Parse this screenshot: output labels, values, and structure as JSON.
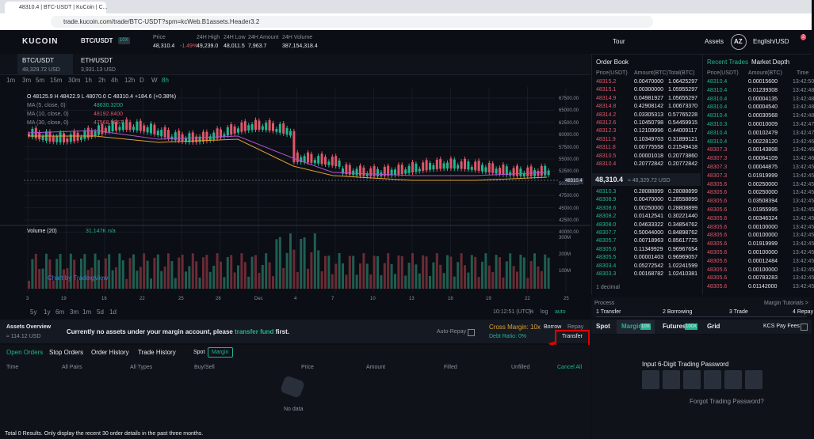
{
  "browser": {
    "tab_title": "48310.4 | BTC-USDT | KuCoin | C...",
    "url": "trade.kucoin.com/trade/BTC-USDT?spm=kcWeb.B1assets.Header3.2"
  },
  "header": {
    "logo": "KUCOIN",
    "pair": "BTC/USDT",
    "leverage": "10X",
    "stats": [
      {
        "label": "Price",
        "value": "48,310.4",
        "change": "-1.49%"
      },
      {
        "label": "24H High",
        "value": "49,239.0"
      },
      {
        "label": "24H Low",
        "value": "48,011.5"
      },
      {
        "label": "24H Amount",
        "value": "7,963.7"
      },
      {
        "label": "24H Volume",
        "value": "387,154,318.4"
      }
    ],
    "tour": "Tour",
    "assets": "Assets",
    "avatar": "AZ",
    "language": "English/USD",
    "badge": "2"
  },
  "tickers": [
    {
      "pair": "BTC/USDT",
      "price": "48,329.72 USD"
    },
    {
      "pair": "ETH/USDT",
      "price": "3,931.13 USD"
    }
  ],
  "intervals": [
    "1m",
    "3m",
    "5m",
    "15m",
    "30m",
    "1h",
    "2h",
    "4h",
    "12h",
    "D",
    "W",
    "8h"
  ],
  "chart": {
    "ohlc": "O 48125.9  H 48422.9  L 48070.0  C 48310.4  +184.6 (+0.38%)",
    "ma": [
      {
        "label": "MA (5, close, 0)",
        "value": "48630.3200"
      },
      {
        "label": "MA (10, close, 0)",
        "value": "48192.8400"
      },
      {
        "label": "MA (30, close, 0)",
        "value": "47568.5867"
      }
    ],
    "price_axis": [
      "67500.00",
      "65000.00",
      "62500.00",
      "60000.00",
      "57500.00",
      "55000.00",
      "52500.00",
      "50000.00",
      "47500.00",
      "45000.00",
      "42500.00",
      "40000.00"
    ],
    "current_price": "48310.4",
    "volume_label": "Volume (20)",
    "volume_value": "31.147K  n/a",
    "volume_axis": [
      "300M",
      "200M",
      "100M"
    ],
    "date_axis": [
      "3",
      "19",
      "16",
      "22",
      "25",
      "28",
      "Dec",
      "4",
      "7",
      "10",
      "13",
      "16",
      "19",
      "22",
      "25"
    ],
    "watermark": "Chart by TradingView",
    "ranges": [
      "5y",
      "1y",
      "6m",
      "3m",
      "1m",
      "5d",
      "1d"
    ],
    "time": "10:12:51 (UTC)",
    "percent": "%",
    "log": "log",
    "auto": "auto"
  },
  "order_book": {
    "title": "Order Book",
    "columns": [
      "Price(USDT)",
      "Amount(BTC)",
      "Total(BTC)"
    ],
    "asks": [
      [
        "48315.2",
        "0.00470000",
        "1.06425297"
      ],
      [
        "48315.1",
        "0.00300000",
        "1.05955297"
      ],
      [
        "48314.9",
        "0.04981927",
        "1.05655297"
      ],
      [
        "48314.8",
        "0.42908142",
        "1.00673370"
      ],
      [
        "48314.2",
        "0.03305313",
        "0.57765228"
      ],
      [
        "48312.6",
        "0.10450798",
        "0.54459915"
      ],
      [
        "48312.3",
        "0.12109996",
        "0.44009117"
      ],
      [
        "48311.9",
        "0.10349703",
        "0.31899121"
      ],
      [
        "48311.8",
        "0.00775558",
        "0.21549418"
      ],
      [
        "48310.5",
        "0.00001018",
        "0.20773860"
      ],
      [
        "48310.4",
        "0.20772842",
        "0.20772842"
      ]
    ],
    "mid_price": "48,310.4",
    "mid_usd": "≈ 48,329.72 USD",
    "bids": [
      [
        "48310.3",
        "0.28088899",
        "0.28088899"
      ],
      [
        "48308.9",
        "0.00470000",
        "0.28558899"
      ],
      [
        "48308.6",
        "0.00250000",
        "0.28808899"
      ],
      [
        "48308.2",
        "0.01412541",
        "0.30221440"
      ],
      [
        "48308.0",
        "0.04633322",
        "0.34854762"
      ],
      [
        "48307.7",
        "0.50044000",
        "0.84898762"
      ],
      [
        "48305.7",
        "0.00718963",
        "0.85617725"
      ],
      [
        "48305.6",
        "0.11349929",
        "0.96967654"
      ],
      [
        "48305.5",
        "0.00001403",
        "0.96969057"
      ],
      [
        "48303.4",
        "0.05272542",
        "1.02241599"
      ],
      [
        "48303.3",
        "0.00168782",
        "1.02410381"
      ]
    ],
    "decimal": "1 decimal"
  },
  "trades": {
    "tabs": [
      "Recent Trades",
      "Market Depth"
    ],
    "columns": [
      "Price(USDT)",
      "Amount(BTC)",
      "Time"
    ],
    "rows": [
      [
        "48310.4",
        "0.00015600",
        "13:42:50"
      ],
      [
        "48310.4",
        "0.01239308",
        "13:42:48"
      ],
      [
        "48310.4",
        "0.00004135",
        "13:42:48"
      ],
      [
        "48310.4",
        "0.00004540",
        "13:42:48"
      ],
      [
        "48310.4",
        "0.00030568",
        "13:42:48"
      ],
      [
        "48310.3",
        "0.00010009",
        "13:42:47"
      ],
      [
        "48310.4",
        "0.00102479",
        "13:42:47"
      ],
      [
        "48310.4",
        "0.00228120",
        "13:42:46"
      ],
      [
        "48307.3",
        "0.00143808",
        "13:42:46"
      ],
      [
        "48307.3",
        "0.00064109",
        "13:42:46"
      ],
      [
        "48307.3",
        "0.00044875",
        "13:42:45"
      ],
      [
        "48307.3",
        "0.01919999",
        "13:42:45"
      ],
      [
        "48305.6",
        "0.00250000",
        "13:42:45"
      ],
      [
        "48305.6",
        "0.00250000",
        "13:42:45"
      ],
      [
        "48305.6",
        "0.03508394",
        "13:42:45"
      ],
      [
        "48305.6",
        "0.01955995",
        "13:42:45"
      ],
      [
        "48305.6",
        "0.00346324",
        "13:42:45"
      ],
      [
        "48305.6",
        "0.00100000",
        "13:42:45"
      ],
      [
        "48305.6",
        "0.00100000",
        "13:42:45"
      ],
      [
        "48305.6",
        "0.01919999",
        "13:42:45"
      ],
      [
        "48305.6",
        "0.00100000",
        "13:42:45"
      ],
      [
        "48305.6",
        "0.00012484",
        "13:42:45"
      ],
      [
        "48305.6",
        "0.00100000",
        "13:42:45"
      ],
      [
        "48305.6",
        "0.00783283",
        "13:42:45"
      ],
      [
        "48305.6",
        "0.01142000",
        "13:42:45"
      ]
    ]
  },
  "process": {
    "title": "Process",
    "tutorials": "Margin Tutorials >",
    "steps": [
      "1 Transfer",
      "2 Borrowing",
      "3 Trade",
      "4 Repay"
    ]
  },
  "trade_panel": {
    "tabs": [
      "Spot",
      "Margin",
      "Futures",
      "Grid"
    ],
    "margin_badge": "10X",
    "futures_badge": "100X",
    "kcs": "KCS Pay Fees",
    "password_prompt": "Input 6-Digit Trading Password",
    "forgot": "Forgot Trading Password?"
  },
  "assets": {
    "title": "Assets Overview",
    "total": "≈ 114.12 USD",
    "message": [
      "Currently no assets under your margin account, please ",
      "transfer fund",
      " first."
    ],
    "auto_repay": "Auto-Repay",
    "cross_margin": "Cross Margin: 10x",
    "debt_ratio": "Debt Ratio: 0%",
    "borrow": "Borrow",
    "repay": "Repay",
    "transfer": "Transfer"
  },
  "orders": {
    "tabs": [
      "Open Orders",
      "Stop Orders",
      "Order History",
      "Trade History"
    ],
    "filters": [
      "Spot",
      "Margin"
    ],
    "columns": [
      "Time",
      "All Pairs",
      "All Types",
      "Buy/Sell",
      "Price",
      "Amount",
      "Filled",
      "Unfilled",
      "Cancel All"
    ],
    "empty": "No data",
    "footer": "Total 0 Results. Only display the recent 30 order details in the past three months."
  }
}
